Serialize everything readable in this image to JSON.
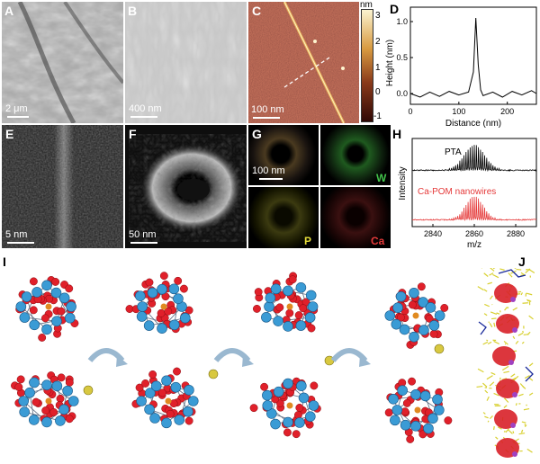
{
  "panels": {
    "A": {
      "label": "A",
      "scale": "2 μm"
    },
    "B": {
      "label": "B",
      "scale": "400 nm"
    },
    "C": {
      "label": "C",
      "scale": "100 nm",
      "colorbar_unit": "nm",
      "colorbar_ticks": [
        "3",
        "2",
        "1",
        "0",
        "-1"
      ]
    },
    "D": {
      "label": "D",
      "ylabel": "Height (nm)",
      "xlabel": "Distance (nm)",
      "yticks": [
        "1.0",
        "0.5",
        "0.0"
      ],
      "xticks": [
        "0",
        "100",
        "200"
      ]
    },
    "E": {
      "label": "E",
      "scale": "5 nm"
    },
    "F": {
      "label": "F",
      "scale": "50 nm"
    },
    "G": {
      "label": "G",
      "scale": "100 nm",
      "elements": [
        "W",
        "P",
        "Ca"
      ]
    },
    "H": {
      "label": "H",
      "ylabel": "Intensity",
      "xlabel": "m/z",
      "xticks": [
        "2840",
        "2860",
        "2880"
      ],
      "series": [
        "PTA",
        "Ca-POM nanowires"
      ]
    },
    "I": {
      "label": "I"
    },
    "J": {
      "label": "J"
    }
  },
  "colors": {
    "red": "#e0202a",
    "blue": "#3a9bd5",
    "yellow": "#d8c840",
    "arrow": "#9ab8d0"
  },
  "chart_data": [
    {
      "type": "line",
      "x": [
        0,
        20,
        40,
        60,
        80,
        100,
        120,
        130,
        135,
        140,
        145,
        150,
        170,
        190,
        210,
        230,
        250,
        260
      ],
      "series": [
        {
          "values": [
            0.0,
            -0.05,
            0.02,
            -0.04,
            0.03,
            -0.02,
            0.02,
            0.3,
            1.05,
            0.4,
            0.05,
            -0.03,
            0.02,
            -0.05,
            0.03,
            -0.02,
            0.04,
            0.0
          ]
        }
      ],
      "ylabel": "Height (nm)",
      "xlabel": "Distance (nm)",
      "xlim": [
        0,
        260
      ],
      "ylim": [
        -0.15,
        1.2
      ]
    },
    {
      "type": "line",
      "series": [
        {
          "name": "PTA"
        },
        {
          "name": "Ca-POM nanowires"
        }
      ],
      "ylabel": "Intensity",
      "xlabel": "m/z",
      "xlim": [
        2830,
        2890
      ]
    }
  ]
}
